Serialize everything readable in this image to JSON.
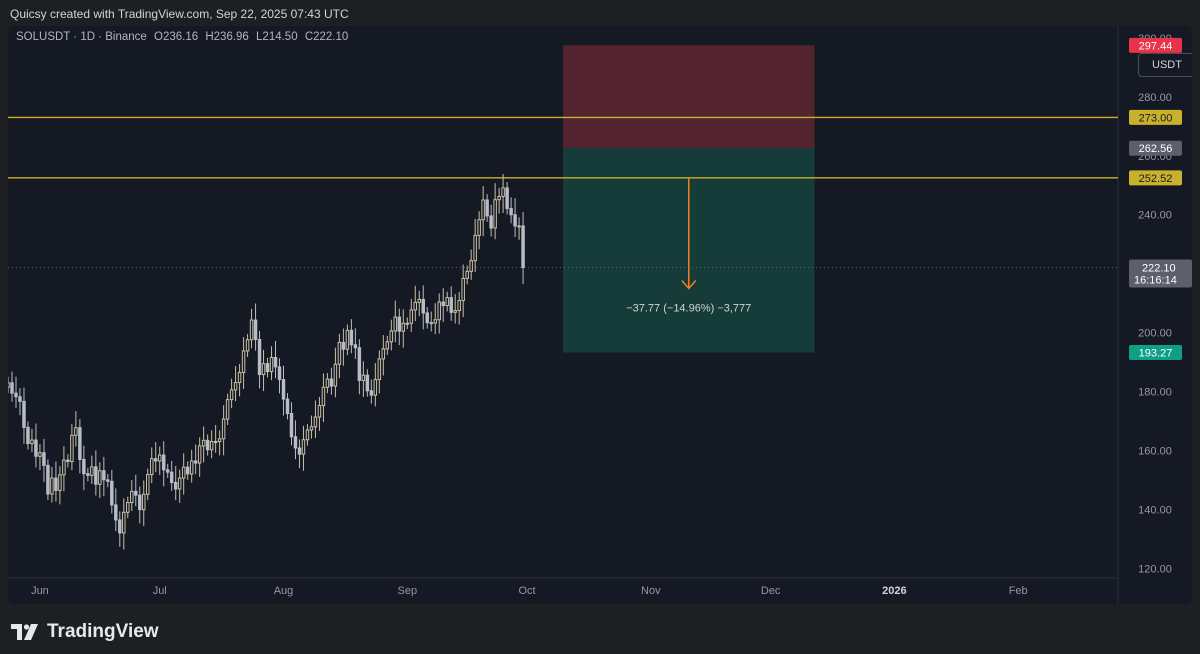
{
  "header": {
    "credit": "Quicsy created with TradingView.com, Sep 22, 2025 07:43 UTC"
  },
  "legend": {
    "symbol": "SOLUSDT · 1D · Binance",
    "open": "O236.16",
    "high": "H236.96",
    "low": "L214.50",
    "close": "C222.10"
  },
  "currency_button": "USDT",
  "footer": {
    "brand": "TradingView",
    "logo_icon": "tradingview-logo-icon"
  },
  "colors": {
    "bg": "#151924",
    "candle": "#c9c1a5",
    "candle_down": "#b8bcc6",
    "hline": "#c9b12c",
    "stop_zone": "#5a2632",
    "target_zone": "#153e3a",
    "arrow": "#f07f22",
    "price_tag": "#5d606b"
  },
  "chart_data": {
    "type": "candlestick",
    "title": "SOLUSDT · 1D · Binance",
    "ylim": [
      108,
      304
    ],
    "y_ticks": [
      120,
      140,
      160,
      180,
      200,
      220,
      240,
      260,
      280,
      300
    ],
    "y_tick_labels": [
      "120.00",
      "140.00",
      "160.00",
      "180.00",
      "200.00",
      "240.00",
      "280.00"
    ],
    "x_tick_labels": [
      "Jun",
      "Jul",
      "Aug",
      "Sep",
      "Oct",
      "Nov",
      "Dec",
      "2026",
      "Feb"
    ],
    "x_tick_dates": [
      "2025-06-01",
      "2025-07-01",
      "2025-08-01",
      "2025-09-01",
      "2025-10-01",
      "2025-11-01",
      "2025-12-01",
      "2026-01-01",
      "2026-02-01"
    ],
    "x_range": [
      "2025-05-24",
      "2026-02-26"
    ],
    "horizontal_lines": [
      273.0,
      252.52
    ],
    "current_price": {
      "value": 222.1,
      "label": "222.10",
      "countdown": "16:16:14"
    },
    "position": {
      "start": "2025-10-10",
      "end": "2025-12-12",
      "entry": 262.56,
      "stop": 297.44,
      "target": 193.27,
      "arrow_from": 252.52,
      "arrow_to": 215.0,
      "label": "−37.77 (−14.96%) −3,777"
    },
    "price_labels": [
      {
        "value": 297.44,
        "label": "297.44",
        "color": "#e8334a"
      },
      {
        "value": 273.0,
        "label": "273.00",
        "color": "#c9b12c"
      },
      {
        "value": 262.56,
        "label": "262.56",
        "color": "#5d606b"
      },
      {
        "value": 252.52,
        "label": "252.52",
        "color": "#c9b12c"
      },
      {
        "value": 193.27,
        "label": "193.27",
        "color": "#0e9f84"
      }
    ],
    "candles_start": "2025-05-24",
    "closes": [
      183.0,
      179.5,
      178.3,
      176.7,
      167.9,
      162.4,
      163.6,
      158.1,
      159.3,
      155.0,
      145.3,
      150.7,
      146.5,
      151.8,
      156.8,
      156.3,
      165.2,
      167.8,
      157.0,
      152.2,
      151.6,
      154.5,
      148.6,
      153.2,
      150.1,
      149.6,
      141.6,
      136.5,
      132.1,
      139.1,
      142.4,
      146.2,
      144.9,
      140.0,
      145.2,
      151.9,
      157.3,
      156.5,
      158.5,
      153.5,
      152.7,
      149.2,
      147.0,
      150.7,
      154.4,
      152.1,
      156.5,
      155.8,
      161.6,
      163.5,
      160.3,
      163.1,
      163.1,
      164.0,
      170.7,
      177.3,
      180.6,
      183.1,
      186.5,
      193.8,
      197.6,
      204.3,
      197.7,
      185.8,
      189.5,
      186.8,
      191.6,
      188.4,
      184.1,
      177.5,
      172.6,
      164.7,
      160.9,
      158.8,
      163.7,
      167.0,
      168.1,
      171.4,
      175.3,
      181.5,
      184.3,
      181.9,
      189.3,
      196.7,
      194.4,
      200.8,
      195.9,
      194.9,
      183.8,
      185.6,
      180.3,
      178.8,
      184.1,
      191.1,
      194.5,
      196.9,
      200.6,
      205.3,
      200.5,
      203.2,
      203.2,
      207.7,
      210.3,
      211.3,
      206.7,
      203.4,
      203.3,
      204.4,
      210.4,
      209.2,
      211.9,
      206.9,
      207.5,
      210.9,
      218.4,
      220.8,
      224.4,
      233.0,
      238.3,
      245.0,
      239.6,
      235.5,
      245.1,
      246.2,
      249.1,
      242.1,
      240.0,
      236.2,
      236.2,
      222.1
    ]
  }
}
